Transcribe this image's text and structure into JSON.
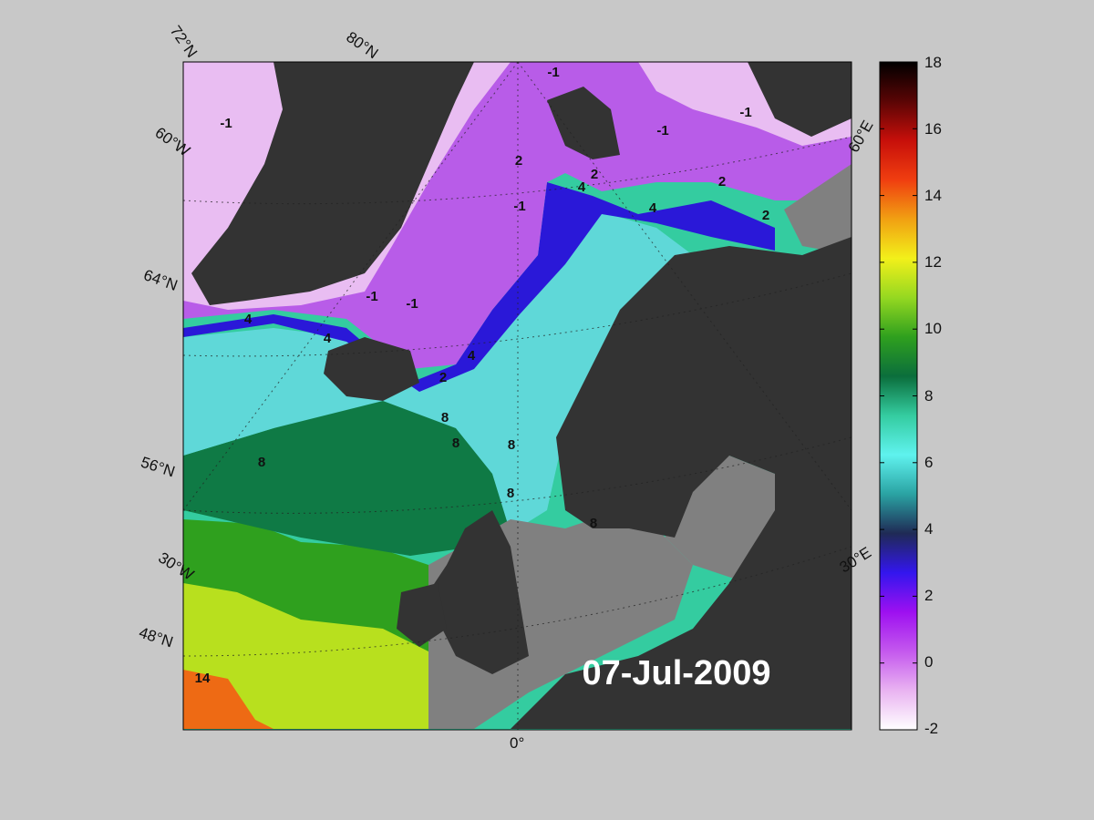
{
  "map": {
    "date": "07-Jul-2009",
    "parallel_labels": [
      "72°N",
      "64°N",
      "56°N",
      "48°N"
    ],
    "meridian_labels": [
      "80°N",
      "60°W",
      "30°W",
      "0°",
      "30°E",
      "60°E"
    ],
    "contour_labels": [
      "-1",
      "-1",
      "-1",
      "-1",
      "-1",
      "-1",
      "-1",
      "2",
      "2",
      "2",
      "2",
      "2",
      "4",
      "4",
      "4",
      "4",
      "4",
      "8",
      "8",
      "8",
      "8",
      "8",
      "8",
      "14"
    ],
    "land_color": "#333333",
    "shelf_mask_color": "#808080"
  },
  "colorbar": {
    "min": -2,
    "max": 18,
    "ticks": [
      "18",
      "16",
      "14",
      "12",
      "10",
      "8",
      "6",
      "4",
      "2",
      "0",
      "-2"
    ],
    "colors": [
      "#ffffff",
      "#e9b3f1",
      "#c458ee",
      "#9d10f0",
      "#3316ee",
      "#1f2a55",
      "#2aa3a3",
      "#5ff2ee",
      "#34cca0",
      "#0b6e3c",
      "#2fa01e",
      "#95d821",
      "#f2f01a",
      "#f1a012",
      "#f03e10",
      "#c70f0a",
      "#5a0505",
      "#000000"
    ]
  }
}
